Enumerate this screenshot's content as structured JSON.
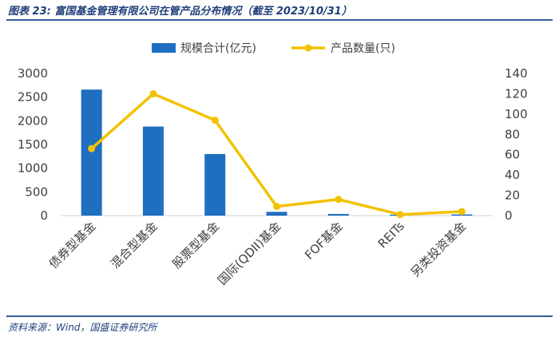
{
  "title": "图表 23:  富国基金管理有限公司在管产品分布情况（截至 2023/10/31）",
  "source": "资料来源：Wind，国盛证券研究所",
  "chart_data": {
    "type": "bar+line",
    "categories": [
      "债券型基金",
      "混合型基金",
      "股票型基金",
      "国际(QDII)基金",
      "FOF基金",
      "REITs",
      "另类投资基金"
    ],
    "series": [
      {
        "name": "规模合计(亿元)",
        "type": "bar",
        "axis": "left",
        "color": "#1f6fc1",
        "values": [
          2660,
          1880,
          1300,
          80,
          35,
          20,
          25
        ]
      },
      {
        "name": "产品数量(只)",
        "type": "line",
        "axis": "right",
        "color": "#f2c200",
        "values": [
          66,
          120,
          94,
          9,
          16,
          1,
          4
        ]
      }
    ],
    "y_left": {
      "min": 0,
      "max": 3000,
      "step": 500,
      "ticks": [
        "0",
        "500",
        "1000",
        "1500",
        "2000",
        "2500",
        "3000"
      ]
    },
    "y_right": {
      "min": 0,
      "max": 140,
      "step": 20,
      "ticks": [
        "0",
        "20",
        "40",
        "60",
        "80",
        "100",
        "120",
        "140"
      ]
    },
    "legend_position": "top-center",
    "grid": false
  }
}
